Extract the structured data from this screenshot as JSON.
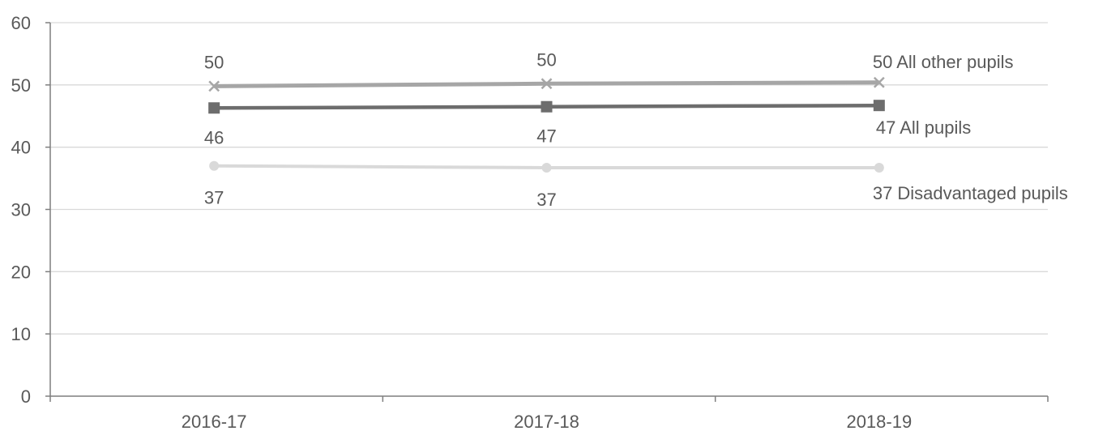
{
  "chart_data": {
    "type": "line",
    "categories": [
      "2016-17",
      "2017-18",
      "2018-19"
    ],
    "ylim": [
      0,
      60
    ],
    "yticks": [
      "0",
      "10",
      "20",
      "30",
      "40",
      "50",
      "60"
    ],
    "grid": true,
    "series": [
      {
        "name": "All other pupils",
        "values": [
          49.8,
          50.2,
          50.4
        ],
        "labels": [
          "50",
          "50",
          "50"
        ],
        "end_label": "50 All  other pupils",
        "marker": "x",
        "color": "#a6a6a6"
      },
      {
        "name": "All pupils",
        "values": [
          46.3,
          46.5,
          46.7
        ],
        "labels": [
          "46",
          "47",
          "47"
        ],
        "end_label": "47 All  pupils",
        "marker": "square",
        "color": "#6d6d6d"
      },
      {
        "name": "Disadvantaged pupils",
        "values": [
          37.0,
          36.7,
          36.7
        ],
        "labels": [
          "37",
          "37",
          "37"
        ],
        "end_label": "37 Disadvantaged pupils",
        "marker": "circle",
        "color": "#d9d9d9"
      }
    ]
  }
}
